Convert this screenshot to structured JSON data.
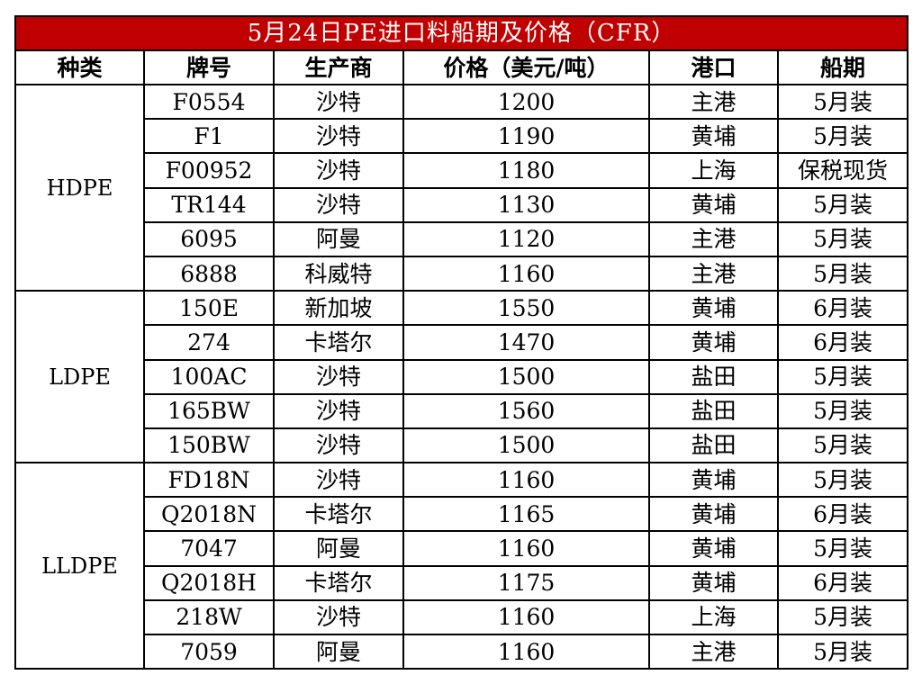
{
  "title": "5月24日PE进口料船期及价格（CFR）",
  "headers": [
    "种类",
    "牌号",
    "生产商",
    "价格（美元/吨）",
    "港口",
    "船期"
  ],
  "colors": {
    "title_bg": "#c00000",
    "title_text": "#ffffff",
    "border": "#000000"
  },
  "groups": [
    {
      "type": "HDPE",
      "rows": [
        [
          "F0554",
          "沙特",
          "1200",
          "主港",
          "5月装"
        ],
        [
          "F1",
          "沙特",
          "1190",
          "黄埔",
          "5月装"
        ],
        [
          "F00952",
          "沙特",
          "1180",
          "上海",
          "保税现货"
        ],
        [
          "TR144",
          "沙特",
          "1130",
          "黄埔",
          "5月装"
        ],
        [
          "6095",
          "阿曼",
          "1120",
          "主港",
          "5月装"
        ],
        [
          "6888",
          "科威特",
          "1160",
          "主港",
          "5月装"
        ]
      ]
    },
    {
      "type": "LDPE",
      "rows": [
        [
          "150E",
          "新加坡",
          "1550",
          "黄埔",
          "6月装"
        ],
        [
          "274",
          "卡塔尔",
          "1470",
          "黄埔",
          "6月装"
        ],
        [
          "100AC",
          "沙特",
          "1500",
          "盐田",
          "5月装"
        ],
        [
          "165BW",
          "沙特",
          "1560",
          "盐田",
          "5月装"
        ],
        [
          "150BW",
          "沙特",
          "1500",
          "盐田",
          "5月装"
        ]
      ]
    },
    {
      "type": "LLDPE",
      "rows": [
        [
          "FD18N",
          "沙特",
          "1160",
          "黄埔",
          "5月装"
        ],
        [
          "Q2018N",
          "卡塔尔",
          "1165",
          "黄埔",
          "6月装"
        ],
        [
          "7047",
          "阿曼",
          "1160",
          "黄埔",
          "5月装"
        ],
        [
          "Q2018H",
          "卡塔尔",
          "1175",
          "黄埔",
          "6月装"
        ],
        [
          "218W",
          "沙特",
          "1160",
          "上海",
          "5月装"
        ],
        [
          "7059",
          "阿曼",
          "1160",
          "主港",
          "5月装"
        ]
      ]
    }
  ]
}
